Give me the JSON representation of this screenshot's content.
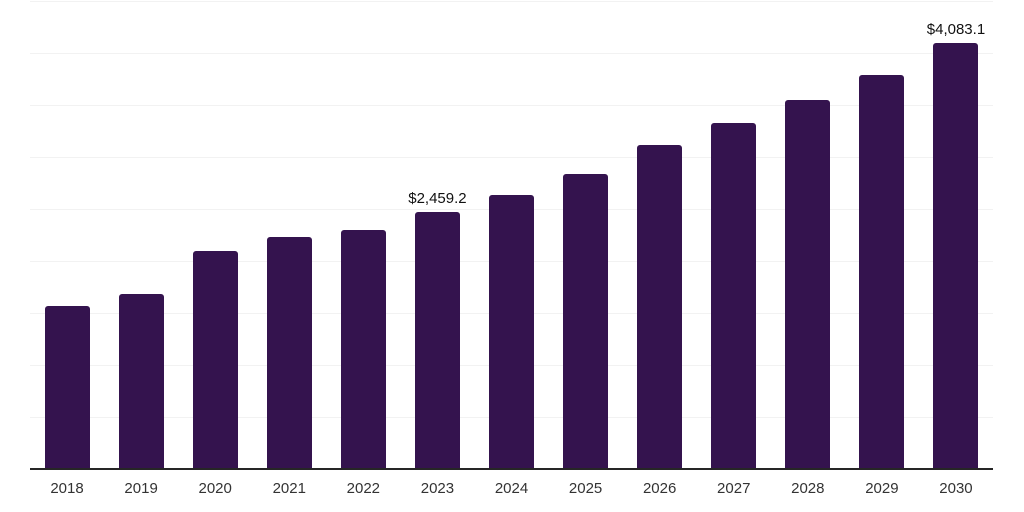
{
  "chart_data": {
    "type": "bar",
    "title": "",
    "xlabel": "",
    "ylabel": "",
    "categories": [
      "2018",
      "2019",
      "2020",
      "2021",
      "2022",
      "2023",
      "2024",
      "2025",
      "2026",
      "2027",
      "2028",
      "2029",
      "2030"
    ],
    "values": [
      1560,
      1678,
      2087,
      2218,
      2288,
      2459.2,
      2630,
      2824,
      3106,
      3313,
      3542,
      3783,
      4083.1
    ],
    "data_labels": [
      null,
      null,
      null,
      null,
      null,
      "$2,459.2",
      null,
      null,
      null,
      null,
      null,
      null,
      "$4,083.1"
    ],
    "ylim": [
      0,
      4500
    ],
    "gridline_step": 500,
    "grid": "horizontal",
    "legend_position": "none",
    "colors": {
      "bar": "#34134E",
      "grid": "#F2F2F2",
      "axis": "#262626",
      "tick_label": "#333333",
      "data_label": "#111111"
    }
  }
}
